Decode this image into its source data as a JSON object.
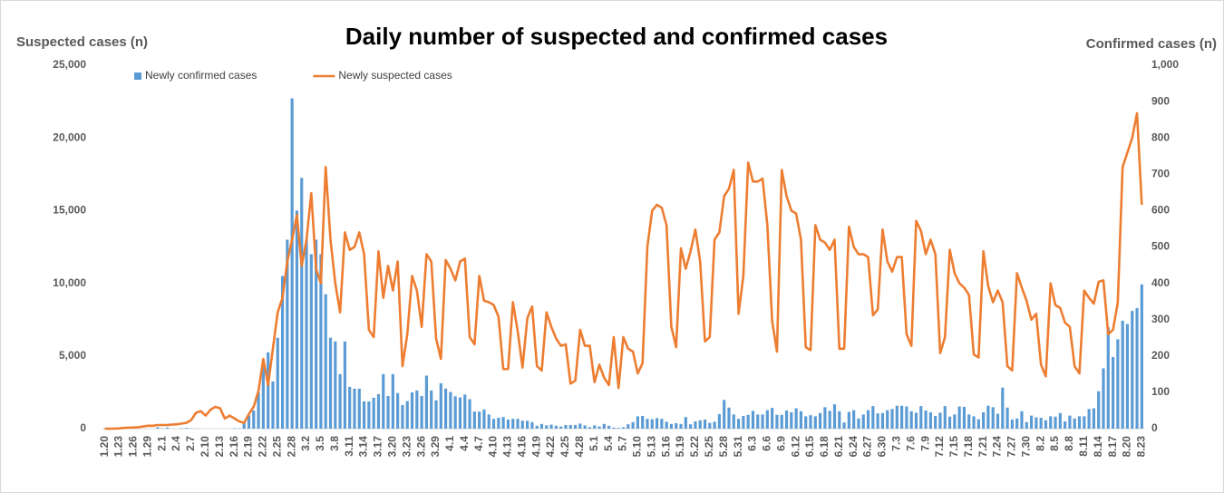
{
  "chart_data": {
    "type": "combo",
    "title": "Daily number of suspected and confirmed cases",
    "y_label": "Suspected cases (n)",
    "y2_label": "Confirmed cases (n)",
    "categories": [
      "1.20",
      null,
      null,
      "1.23",
      null,
      null,
      "1.26",
      null,
      null,
      "1.29",
      null,
      null,
      "2.1",
      null,
      null,
      "2.4",
      null,
      null,
      "2.7",
      null,
      null,
      "2.10",
      null,
      null,
      "2.13",
      null,
      null,
      "2.16",
      null,
      null,
      "2.19",
      null,
      null,
      "2.22",
      null,
      null,
      "2.25",
      null,
      null,
      "2.28",
      null,
      null,
      "3.2",
      null,
      null,
      "3.5",
      null,
      null,
      "3.8",
      null,
      null,
      "3.11",
      null,
      null,
      "3.14",
      null,
      null,
      "3.17",
      null,
      null,
      "3.20",
      null,
      null,
      "3.23",
      null,
      null,
      "3.26",
      null,
      null,
      "3.29",
      null,
      null,
      "4.1",
      null,
      null,
      "4.4",
      null,
      null,
      "4.7",
      null,
      null,
      "4.10",
      null,
      null,
      "4.13",
      null,
      null,
      "4.16",
      null,
      null,
      "4.19",
      null,
      null,
      "4.22",
      null,
      null,
      "4.25",
      null,
      null,
      "4.28",
      null,
      null,
      "5.1",
      null,
      null,
      "5.4",
      null,
      null,
      "5.7",
      null,
      null,
      "5.10",
      null,
      null,
      "5.13",
      null,
      null,
      "5.16",
      null,
      null,
      "5.19",
      null,
      null,
      "5.22",
      null,
      null,
      "5.25",
      null,
      null,
      "5.28",
      null,
      null,
      "5.31",
      null,
      null,
      "6.3",
      null,
      null,
      "6.6",
      null,
      null,
      "6.9",
      null,
      null,
      "6.12",
      null,
      null,
      "6.15",
      null,
      null,
      "6.18",
      null,
      null,
      "6.21",
      null,
      null,
      "6.24",
      null,
      null,
      "6.27",
      null,
      null,
      "6.30",
      null,
      null,
      "7.3",
      null,
      null,
      "7.6",
      null,
      null,
      "7.9",
      null,
      null,
      "7.12",
      null,
      null,
      "7.15",
      null,
      null,
      "7.18",
      null,
      null,
      "7.21",
      null,
      null,
      "7.24",
      null,
      null,
      "7.27",
      null,
      null,
      "7.30",
      null,
      null,
      "8.2",
      null,
      null,
      "8.5",
      null,
      null,
      "8.8",
      null,
      null,
      "8.11",
      null,
      null,
      "8.14",
      null,
      null,
      "8.17",
      null,
      null,
      "8.20",
      null,
      null,
      "8.23"
    ],
    "series": [
      {
        "name": "Newly confirmed cases",
        "type": "bar",
        "axis": "y2",
        "color": "#5b9bd5",
        "values": [
          1,
          0,
          0,
          1,
          0,
          1,
          1,
          0,
          0,
          0,
          0,
          4,
          1,
          3,
          0,
          0,
          1,
          2,
          1,
          0,
          0,
          0,
          0,
          0,
          0,
          0,
          0,
          1,
          1,
          20,
          36,
          50,
          100,
          190,
          210,
          130,
          250,
          420,
          520,
          909,
          600,
          690,
          520,
          480,
          520,
          480,
          370,
          250,
          240,
          150,
          240,
          115,
          110,
          110,
          75,
          75,
          85,
          95,
          150,
          90,
          150,
          98,
          65,
          76,
          100,
          105,
          90,
          146,
          105,
          78,
          125,
          110,
          101,
          89,
          86,
          94,
          81,
          47,
          47,
          53,
          39,
          27,
          30,
          32,
          25,
          27,
          27,
          22,
          22,
          18,
          8,
          13,
          9,
          11,
          8,
          6,
          10,
          10,
          10,
          14,
          9,
          4,
          9,
          6,
          13,
          8,
          3,
          2,
          4,
          12,
          18,
          34,
          35,
          27,
          26,
          29,
          27,
          19,
          13,
          15,
          13,
          32,
          12,
          20,
          23,
          25,
          16,
          19,
          40,
          79,
          58,
          39,
          27,
          35,
          38,
          49,
          39,
          39,
          51,
          57,
          38,
          38,
          50,
          45,
          56,
          48,
          34,
          37,
          34,
          43,
          59,
          49,
          67,
          48,
          17,
          46,
          51,
          28,
          39,
          51,
          62,
          42,
          43,
          51,
          54,
          63,
          63,
          61,
          48,
          44,
          62,
          50,
          45,
          35,
          44,
          62,
          33,
          39,
          61,
          60,
          39,
          34,
          26,
          45,
          63,
          59,
          41,
          113,
          58,
          25,
          28,
          48,
          18,
          36,
          31,
          30,
          23,
          34,
          33,
          43,
          20,
          36,
          28,
          34,
          34,
          54,
          56,
          103,
          166,
          279,
          197,
          246,
          297,
          288,
          324,
          332,
          397
        ]
      },
      {
        "name": "Newly suspected cases",
        "type": "line",
        "axis": "y",
        "color": "#ed7d31",
        "values": [
          0,
          0,
          5,
          20,
          50,
          70,
          80,
          100,
          150,
          200,
          200,
          250,
          250,
          250,
          280,
          300,
          350,
          400,
          600,
          1100,
          1200,
          900,
          1300,
          1500,
          1400,
          700,
          900,
          700,
          500,
          400,
          1000,
          1500,
          2600,
          4800,
          3000,
          5500,
          8000,
          9000,
          11500,
          13000,
          14700,
          11200,
          13000,
          16200,
          11000,
          10000,
          18000,
          13000,
          10000,
          8000,
          13500,
          12300,
          12500,
          13500,
          12000,
          6800,
          6300,
          12200,
          9000,
          11200,
          9500,
          11500,
          4300,
          6500,
          10500,
          9500,
          7000,
          12000,
          11500,
          6200,
          4800,
          11600,
          11000,
          10200,
          11500,
          11700,
          6300,
          5800,
          10500,
          8800,
          8700,
          8500,
          7700,
          4100,
          4100,
          8700,
          6700,
          4200,
          7600,
          8400,
          4300,
          4000,
          8000,
          7000,
          6200,
          5700,
          5800,
          3100,
          3300,
          6800,
          5700,
          5700,
          3200,
          4400,
          3500,
          3000,
          6300,
          2800,
          6300,
          5500,
          5300,
          3800,
          4500,
          12500,
          15000,
          15400,
          15200,
          14000,
          7000,
          5600,
          12400,
          11000,
          12200,
          13700,
          11500,
          6000,
          6300,
          13000,
          13500,
          16000,
          16500,
          17800,
          7900,
          10500,
          18300,
          17000,
          17000,
          17200,
          14000,
          7400,
          5300,
          17800,
          16000,
          15000,
          14800,
          13000,
          5600,
          5400,
          14000,
          13000,
          12800,
          12300,
          13000,
          5500,
          5500,
          13900,
          12500,
          12000,
          12000,
          11800,
          7800,
          8200,
          13700,
          11500,
          10800,
          11800,
          11800,
          6500,
          5700,
          14300,
          13600,
          12000,
          13000,
          12000,
          5200,
          6300,
          12300,
          10700,
          10000,
          9700,
          9200,
          5100,
          4900,
          12200,
          9800,
          8700,
          9500,
          8700,
          4300,
          4000,
          10700,
          9700,
          8800,
          7500,
          7900,
          4400,
          3600,
          10000,
          8500,
          8300,
          7300,
          7000,
          4300,
          3800,
          9500,
          9000,
          8600,
          10100,
          10200,
          6500,
          6800,
          8700,
          18000,
          19000,
          20000,
          21700,
          15400
        ]
      }
    ],
    "ylim": [
      0,
      25000
    ],
    "yticks": [
      0,
      {
        "value": 5000,
        "label": "5,000"
      },
      {
        "value": 10000,
        "label": "10,000"
      },
      {
        "value": 15000,
        "label": "15,000"
      },
      {
        "value": 20000,
        "label": "20,000"
      },
      {
        "value": 25000,
        "label": "25,000"
      }
    ],
    "y2lim": [
      0,
      1000
    ],
    "y2ticks": [
      0,
      100,
      200,
      300,
      400,
      500,
      600,
      700,
      800,
      900,
      {
        "value": 1000,
        "label": "1,000"
      }
    ],
    "grid": false,
    "legend": "top-left"
  }
}
